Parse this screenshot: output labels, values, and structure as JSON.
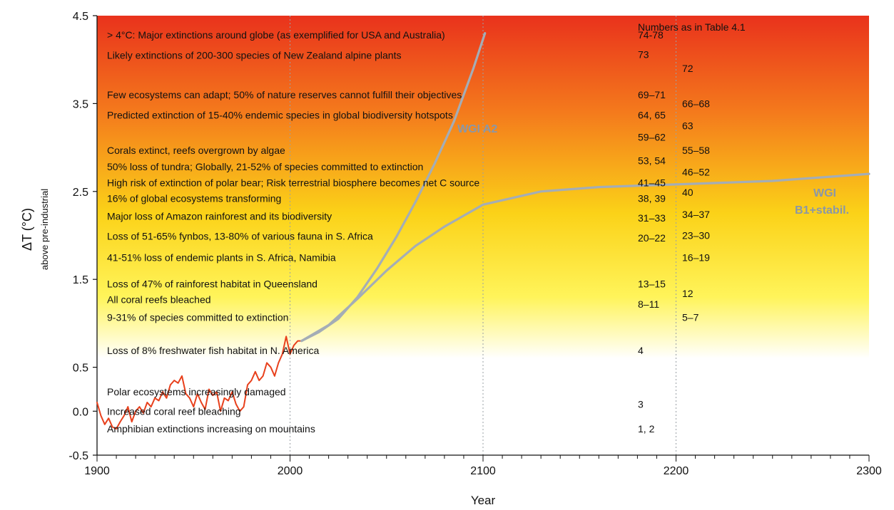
{
  "chart_data": {
    "type": "line",
    "xlabel": "Year",
    "ylabel": "ΔT (°C)",
    "ylabel_sub": "above pre-industrial",
    "xlim": [
      1900,
      2300
    ],
    "ylim": [
      -0.5,
      4.5
    ],
    "x_ticks": [
      1900,
      2000,
      2100,
      2200,
      2300
    ],
    "x_tick_labels": [
      "1900",
      "2000",
      "2100",
      "2200",
      "2300"
    ],
    "y_ticks": [
      -0.5,
      0.0,
      0.5,
      1.5,
      2.5,
      3.5,
      4.5
    ],
    "y_tick_labels": [
      "-0.5",
      "0.0",
      "0.5",
      "1.5",
      "2.5",
      "3.5",
      "4.5"
    ],
    "grid": "vertical dotted at 2000, 2100, 2200",
    "background": "vertical gradient white (0.5 °C) to yellow to red (4.5 °C)",
    "numbers_header": "Numbers as in Table 4.1",
    "series": [
      {
        "name": "",
        "color": "#e8401c",
        "x": [
          1900,
          1902,
          1904,
          1906,
          1908,
          1910,
          1912,
          1914,
          1916,
          1918,
          1920,
          1922,
          1924,
          1926,
          1928,
          1930,
          1932,
          1934,
          1936,
          1938,
          1940,
          1942,
          1944,
          1946,
          1948,
          1950,
          1952,
          1954,
          1956,
          1958,
          1960,
          1962,
          1964,
          1966,
          1968,
          1970,
          1972,
          1974,
          1976,
          1978,
          1980,
          1982,
          1984,
          1986,
          1988,
          1990,
          1992,
          1994,
          1996,
          1998,
          2000,
          2002,
          2004,
          2006
        ],
        "y": [
          0.1,
          -0.05,
          -0.15,
          -0.08,
          -0.18,
          -0.2,
          -0.12,
          -0.05,
          0.05,
          -0.12,
          0.0,
          0.05,
          -0.02,
          0.1,
          0.05,
          0.15,
          0.12,
          0.22,
          0.15,
          0.3,
          0.35,
          0.32,
          0.4,
          0.2,
          0.15,
          0.05,
          0.2,
          0.1,
          0.02,
          0.25,
          0.18,
          0.22,
          0.0,
          0.15,
          0.12,
          0.22,
          0.08,
          0.0,
          0.05,
          0.3,
          0.35,
          0.45,
          0.35,
          0.4,
          0.55,
          0.5,
          0.4,
          0.55,
          0.65,
          0.85,
          0.65,
          0.75,
          0.8,
          0.8
        ]
      },
      {
        "name": "WGI A2",
        "color": "#a4adb6",
        "x": [
          2006,
          2015,
          2025,
          2035,
          2045,
          2055,
          2065,
          2075,
          2085,
          2095,
          2101
        ],
        "y": [
          0.8,
          0.9,
          1.05,
          1.3,
          1.62,
          1.98,
          2.38,
          2.82,
          3.3,
          3.9,
          4.3
        ]
      },
      {
        "name": "WGI B1+stabil.",
        "color": "#a4adb6",
        "x": [
          2006,
          2020,
          2035,
          2050,
          2065,
          2080,
          2100,
          2130,
          2160,
          2200,
          2250,
          2300
        ],
        "y": [
          0.8,
          0.98,
          1.28,
          1.6,
          1.88,
          2.1,
          2.35,
          2.5,
          2.55,
          2.58,
          2.62,
          2.7
        ]
      }
    ],
    "annotations": [
      {
        "text": "> 4°C: Major extinctions around globe (as exemplified for USA and Australia)",
        "y": 4.28
      },
      {
        "text": "Likely extinctions of 200-300 species of New Zealand alpine plants",
        "y": 4.05
      },
      {
        "text": "Few ecosystems can adapt;  50% of nature reserves cannot fulfill their objectives",
        "y": 3.6
      },
      {
        "text": "Predicted extinction of 15-40% endemic species in global biodiversity hotspots",
        "y": 3.37
      },
      {
        "text": "Corals extinct, reefs overgrown by algae",
        "y": 2.97
      },
      {
        "text": "50% loss of tundra;  Globally, 21-52% of species committed to extinction",
        "y": 2.78
      },
      {
        "text": "High risk of extinction of polar bear;  Risk terrestrial biosphere becomes net C source",
        "y": 2.6
      },
      {
        "text": "16% of global ecosystems transforming",
        "y": 2.42
      },
      {
        "text": "Major loss of Amazon rainforest and its biodiversity",
        "y": 2.22
      },
      {
        "text": "Loss of 51-65% fynbos, 13-80% of various fauna in S. Africa",
        "y": 1.99
      },
      {
        "text": "41-51% loss of endemic plants in S. Africa, Namibia",
        "y": 1.75
      },
      {
        "text": "Loss of 47% of rainforest habitat in Queensland",
        "y": 1.45
      },
      {
        "text": "All coral reefs bleached",
        "y": 1.27
      },
      {
        "text": "9-31% of species committed to extinction",
        "y": 1.07
      },
      {
        "text": "Loss of 8% freshwater fish habitat in N. America",
        "y": 0.69
      },
      {
        "text": "Polar ecosystems increasingly damaged",
        "y": 0.22
      },
      {
        "text": "Increased coral reef bleaching",
        "y": 0.0
      },
      {
        "text": "Amphibian extinctions increasing on mountains",
        "y": -0.2
      }
    ],
    "numbers_col1": [
      {
        "text": "74-78",
        "y": 4.28
      },
      {
        "text": "73",
        "y": 4.06
      },
      {
        "text": "69–71",
        "y": 3.6
      },
      {
        "text": "64, 65",
        "y": 3.37
      },
      {
        "text": "59–62",
        "y": 3.12
      },
      {
        "text": "53, 54",
        "y": 2.85
      },
      {
        "text": "41–45",
        "y": 2.6
      },
      {
        "text": "38, 39",
        "y": 2.42
      },
      {
        "text": "31–33",
        "y": 2.2
      },
      {
        "text": "20–22",
        "y": 1.97
      },
      {
        "text": "13–15",
        "y": 1.45
      },
      {
        "text": "8–11",
        "y": 1.22
      },
      {
        "text": "4",
        "y": 0.69
      },
      {
        "text": "3",
        "y": 0.08
      },
      {
        "text": "1, 2",
        "y": -0.2
      }
    ],
    "numbers_col2": [
      {
        "text": "72",
        "y": 3.9
      },
      {
        "text": "66–68",
        "y": 3.5
      },
      {
        "text": "63",
        "y": 3.25
      },
      {
        "text": "55–58",
        "y": 2.97
      },
      {
        "text": "46–52",
        "y": 2.72
      },
      {
        "text": "40",
        "y": 2.49
      },
      {
        "text": "34–37",
        "y": 2.24
      },
      {
        "text": "23–30",
        "y": 2.0
      },
      {
        "text": "16–19",
        "y": 1.75
      },
      {
        "text": "12",
        "y": 1.34
      },
      {
        "text": "5–7",
        "y": 1.07
      }
    ]
  }
}
